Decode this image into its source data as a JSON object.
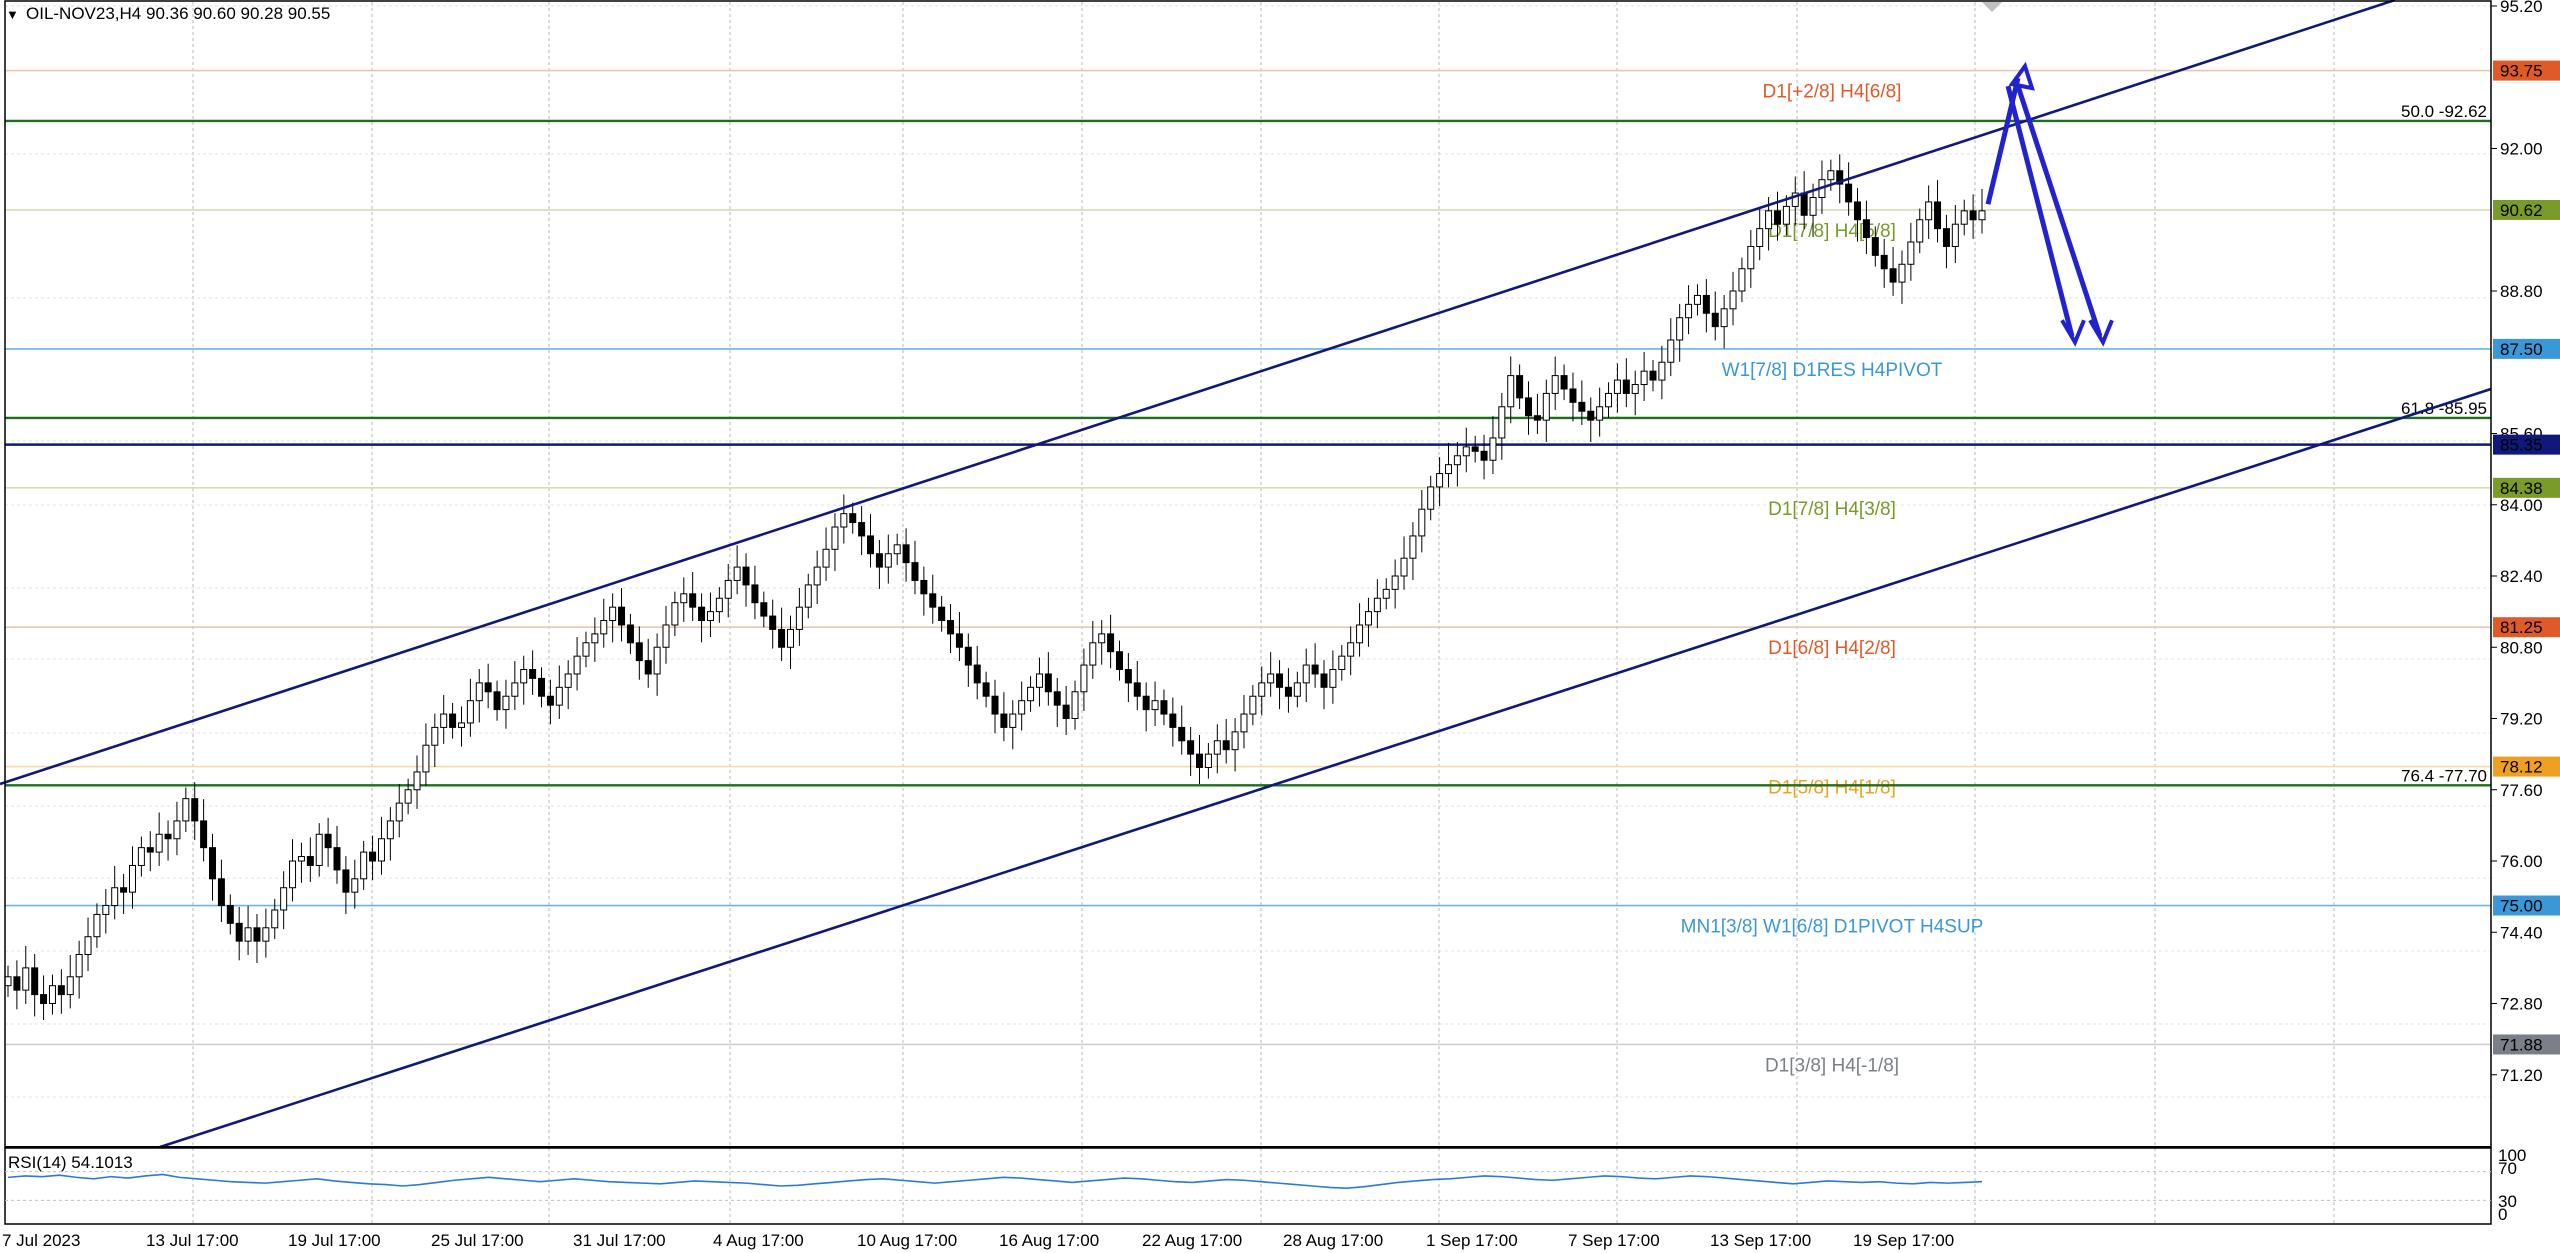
{
  "header": {
    "symbol_info": "OIL-NOV23,H4  90.36 90.60 90.28 90.55"
  },
  "rsi": {
    "label": "RSI(14) 54.1013",
    "scale": [
      "100",
      "70",
      "30",
      "0"
    ],
    "values": [
      62,
      64,
      63,
      65,
      62,
      60,
      63,
      61,
      64,
      66,
      62,
      60,
      58,
      56,
      55,
      54,
      56,
      58,
      60,
      57,
      55,
      53,
      52,
      50,
      52,
      55,
      58,
      60,
      62,
      60,
      58,
      56,
      58,
      60,
      58,
      56,
      55,
      54,
      53,
      55,
      57,
      56,
      55,
      54,
      52,
      50,
      51,
      53,
      55,
      57,
      59,
      60,
      58,
      56,
      54,
      56,
      58,
      60,
      62,
      61,
      59,
      57,
      55,
      57,
      59,
      61,
      60,
      58,
      56,
      55,
      57,
      59,
      58,
      56,
      54,
      52,
      50,
      48,
      47,
      49,
      52,
      55,
      57,
      59,
      60,
      62,
      64,
      63,
      61,
      59,
      58,
      60,
      62,
      64,
      63,
      61,
      60,
      62,
      64,
      63,
      61,
      59,
      57,
      55,
      53,
      55,
      57,
      56,
      55,
      56,
      54,
      53,
      55,
      54,
      55,
      56
    ]
  },
  "price_axis": [
    "95.20",
    "92.00",
    "88.80",
    "85.60",
    "84.00",
    "82.40",
    "80.80",
    "79.20",
    "77.60",
    "76.00",
    "74.40",
    "72.80",
    "71.20"
  ],
  "time_axis": [
    "7 Jul 2023",
    "13 Jul 17:00",
    "19 Jul 17:00",
    "25 Jul 17:00",
    "31 Jul 17:00",
    "4 Aug 17:00",
    "10 Aug 17:00",
    "16 Aug 17:00",
    "22 Aug 17:00",
    "28 Aug 17:00",
    "1 Sep 17:00",
    "7 Sep 17:00",
    "13 Sep 17:00",
    "19 Sep 17:00"
  ],
  "levels": [
    {
      "price": 93.75,
      "label": "D1[+2/8] H4[6/8]",
      "tag": "93.75",
      "color": "#e05a28",
      "line": "#e8c8b0"
    },
    {
      "price": 90.62,
      "label": "D1[7/8] H4[5/8]",
      "tag": "90.62",
      "color": "#7a9a2a",
      "line": "#d4dcb8"
    },
    {
      "price": 87.5,
      "label": "W1[7/8] D1RES H4PIVOT",
      "tag": "87.50",
      "color": "#3a98d8",
      "line": "#6ab4e6"
    },
    {
      "price": 84.38,
      "label": "D1[7/8] H4[3/8]",
      "tag": "84.38",
      "color": "#7a9a2a",
      "line": "#d4dcb8"
    },
    {
      "price": 81.25,
      "label": "D1[6/8] H4[2/8]",
      "tag": "81.25",
      "color": "#e05a28",
      "line": "#e8c8b0"
    },
    {
      "price": 78.12,
      "label": "D1[5/8] H4[1/8]",
      "tag": "78.12",
      "color": "#f0a020",
      "line": "#f4dca8"
    },
    {
      "price": 75.0,
      "label": "MN1[3/8] W1[6/8] D1PIVOT H4SUP",
      "tag": "75.00",
      "color": "#3a98d8",
      "line": "#6ab4e6"
    },
    {
      "price": 71.88,
      "label": "D1[3/8] H4[-1/8]",
      "tag": "71.88",
      "color": "#7a7f88",
      "line": "#d0d0d0"
    }
  ],
  "fib_lines": [
    {
      "price": 92.62,
      "label": "50.0 -92.62"
    },
    {
      "price": 85.95,
      "label": "61.8 -85.95"
    },
    {
      "price": 77.7,
      "label": "76.4 -77.70"
    }
  ],
  "navy_level": {
    "price": 85.35,
    "tag": "85.35"
  },
  "colors": {
    "navy": "#10187a",
    "fib": "#1e6e1e",
    "arrow": "#2222d0",
    "bull": "#ffffff",
    "bear": "#000000"
  },
  "closes": [
    73.4,
    73.1,
    73.6,
    73.0,
    72.8,
    73.2,
    73.0,
    73.4,
    73.9,
    74.3,
    74.8,
    75.0,
    75.4,
    75.3,
    75.9,
    76.3,
    76.2,
    76.6,
    76.5,
    76.9,
    77.4,
    76.9,
    76.3,
    75.6,
    75.0,
    74.6,
    74.2,
    74.5,
    74.2,
    74.5,
    74.9,
    75.4,
    76.0,
    76.1,
    75.9,
    76.6,
    76.3,
    75.8,
    75.3,
    75.6,
    76.2,
    76.0,
    76.5,
    76.9,
    77.3,
    77.6,
    78.0,
    78.6,
    79.0,
    79.3,
    79.0,
    79.1,
    79.6,
    80.0,
    79.8,
    79.4,
    79.7,
    80.0,
    80.3,
    80.1,
    79.7,
    79.5,
    79.9,
    80.2,
    80.6,
    80.9,
    81.1,
    81.4,
    81.7,
    81.3,
    80.9,
    80.5,
    80.2,
    80.8,
    81.3,
    81.8,
    82.0,
    81.7,
    81.4,
    81.6,
    81.9,
    82.3,
    82.6,
    82.2,
    81.8,
    81.5,
    81.2,
    80.8,
    81.2,
    81.7,
    82.2,
    82.6,
    83.0,
    83.5,
    83.8,
    83.6,
    83.3,
    82.9,
    82.6,
    82.9,
    83.1,
    82.7,
    82.3,
    82.0,
    81.7,
    81.4,
    81.1,
    80.8,
    80.4,
    80.0,
    79.7,
    79.3,
    79.0,
    79.3,
    79.6,
    79.9,
    80.2,
    79.8,
    79.5,
    79.2,
    79.8,
    80.4,
    80.9,
    81.1,
    80.7,
    80.3,
    80.0,
    79.7,
    79.4,
    79.6,
    79.3,
    79.0,
    78.7,
    78.4,
    78.1,
    78.4,
    78.7,
    78.5,
    78.9,
    79.3,
    79.7,
    80.0,
    80.2,
    79.9,
    79.7,
    80.0,
    80.4,
    80.2,
    79.9,
    80.3,
    80.6,
    80.9,
    81.3,
    81.6,
    81.9,
    82.1,
    82.4,
    82.8,
    83.3,
    83.9,
    84.4,
    84.7,
    84.9,
    85.1,
    85.3,
    85.2,
    85.0,
    85.5,
    86.2,
    86.9,
    86.4,
    86.0,
    85.9,
    86.5,
    86.9,
    86.6,
    86.3,
    86.1,
    85.9,
    86.2,
    86.5,
    86.8,
    86.5,
    86.7,
    87.0,
    86.8,
    87.2,
    87.7,
    88.2,
    88.5,
    88.7,
    88.3,
    88.0,
    88.4,
    88.8,
    89.3,
    89.8,
    90.2,
    90.6,
    90.3,
    90.7,
    91.0,
    90.5,
    90.9,
    91.3,
    91.5,
    91.2,
    90.8,
    90.4,
    90.0,
    89.6,
    89.3,
    89.0,
    89.4,
    89.9,
    90.4,
    90.8,
    90.2,
    89.8,
    90.3,
    90.6,
    90.4,
    90.6
  ],
  "arrows": {
    "up_start_price": 90.75,
    "up_peak_price": 93.85,
    "down_end_price": 87.65
  }
}
